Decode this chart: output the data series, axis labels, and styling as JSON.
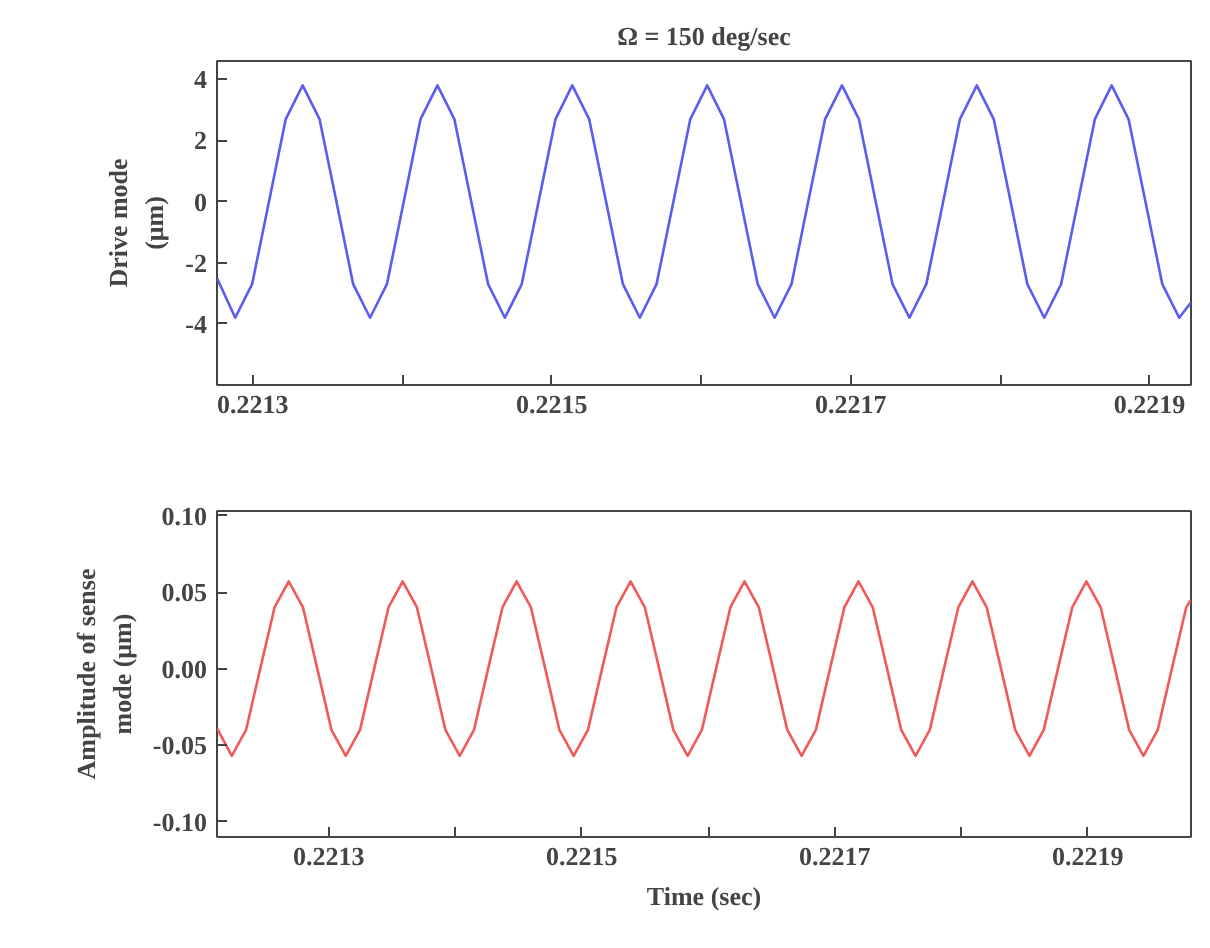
{
  "chart_data": [
    {
      "type": "line",
      "title": "Ω = 150 deg/sec",
      "ylabel": "Drive mode\n(μm)",
      "xlim": [
        0.221276,
        0.2219277
      ],
      "ylim": [
        -6,
        4.6
      ],
      "xticks": [
        0.2213,
        {
          "value": 0.2214,
          "label": null
        },
        0.2215,
        {
          "value": 0.2216,
          "label": null
        },
        0.2217,
        {
          "value": 0.2218,
          "label": null
        },
        0.2219
      ],
      "yticks": [
        4,
        2,
        0,
        {
          "value": -2,
          "label": "-2"
        },
        {
          "value": -4,
          "label": "-4"
        }
      ],
      "grid": false,
      "marker": "none",
      "line_style": "solid",
      "series": [
        {
          "color": "#5c5cf0",
          "x": [
            0.221276,
            0.2212882,
            0.2212995,
            0.2213108,
            0.221322,
            0.2213333,
            0.2213446,
            0.2213559,
            0.2213671,
            0.2213784,
            0.2213897,
            0.221401,
            0.2214122,
            0.2214235,
            0.2214348,
            0.2214461,
            0.2214574,
            0.2214686,
            0.2214799,
            0.2214912,
            0.2215025,
            0.2215137,
            0.221525,
            0.2215363,
            0.2215476,
            0.2215589,
            0.2215701,
            0.2215814,
            0.2215927,
            0.221604,
            0.2216152,
            0.2216265,
            0.2216378,
            0.2216491,
            0.2216604,
            0.2216716,
            0.2216829,
            0.2216942,
            0.2217055,
            0.2217167,
            0.221728,
            0.2217393,
            0.2217506,
            0.2217619,
            0.2217731,
            0.2217844,
            0.2217957,
            0.221807,
            0.2218182,
            0.2218295,
            0.2218408,
            0.2218521,
            0.2218634,
            0.2218746,
            0.2218859,
            0.2218972,
            0.2219085,
            0.2219198,
            0.2219277
          ],
          "values": [
            -2.5,
            -3.8,
            -2.7,
            0,
            2.7,
            3.8,
            2.7,
            0,
            -2.7,
            -3.8,
            -2.7,
            0,
            2.7,
            3.8,
            2.7,
            0,
            -2.7,
            -3.8,
            -2.7,
            0,
            2.7,
            3.8,
            2.7,
            0,
            -2.7,
            -3.8,
            -2.7,
            0,
            2.7,
            3.8,
            2.7,
            0,
            -2.7,
            -3.8,
            -2.7,
            0,
            2.7,
            3.8,
            2.7,
            0,
            -2.7,
            -3.8,
            -2.7,
            0,
            2.7,
            3.8,
            2.7,
            0,
            -2.7,
            -3.8,
            -2.7,
            0,
            2.7,
            3.8,
            2.7,
            0,
            -2.7,
            -3.8,
            -3.3
          ]
        }
      ]
    },
    {
      "type": "line",
      "ylabel": "Amplitude of sense\nmode (μm)",
      "xlabel": "Time (sec)",
      "xlim": [
        0.2212116,
        0.2219817
      ],
      "ylim": [
        -0.11,
        0.103
      ],
      "xticks": [
        0.2213,
        {
          "value": 0.2214,
          "label": null
        },
        0.2215,
        {
          "value": 0.2216,
          "label": null
        },
        0.2217,
        {
          "value": 0.2218,
          "label": null
        },
        0.2219
      ],
      "yticks": [
        {
          "value": 0.1,
          "label": "0.10"
        },
        {
          "value": 0.05,
          "label": "0.05"
        },
        {
          "value": 0,
          "label": "0.00"
        },
        {
          "value": -0.05,
          "label": "-0.05"
        },
        {
          "value": -0.1,
          "label": "-0.10"
        }
      ],
      "grid": false,
      "marker": "none",
      "line_style": "solid",
      "series": [
        {
          "color": "#f05a5a",
          "x": [
            0.2212116,
            0.2212233,
            0.2212346,
            0.2212458,
            0.2212571,
            0.2212683,
            0.2212796,
            0.2212909,
            0.2213021,
            0.2213134,
            0.2213247,
            0.2213359,
            0.2213472,
            0.2213584,
            0.2213697,
            0.221381,
            0.2213922,
            0.2214035,
            0.2214148,
            0.221426,
            0.2214373,
            0.2214485,
            0.2214598,
            0.2214711,
            0.2214823,
            0.2214936,
            0.2215049,
            0.2215161,
            0.2215274,
            0.2215386,
            0.2215499,
            0.2215612,
            0.2215724,
            0.2215837,
            0.221595,
            0.2216062,
            0.2216175,
            0.2216287,
            0.22164,
            0.2216513,
            0.2216625,
            0.2216738,
            0.2216851,
            0.2216963,
            0.2217076,
            0.2217188,
            0.2217301,
            0.2217414,
            0.2217526,
            0.2217639,
            0.2217752,
            0.2217864,
            0.2217977,
            0.2218089,
            0.2218202,
            0.2218315,
            0.2218427,
            0.221854,
            0.2218653,
            0.2218765,
            0.2218878,
            0.221899,
            0.2219103,
            0.2219216,
            0.2219328,
            0.2219441,
            0.2219554,
            0.2219666,
            0.2219779,
            0.2219817
          ],
          "values": [
            -0.039,
            -0.057,
            -0.04,
            0,
            0.04,
            0.057,
            0.04,
            0,
            -0.04,
            -0.057,
            -0.04,
            0,
            0.04,
            0.057,
            0.04,
            0,
            -0.04,
            -0.057,
            -0.04,
            0,
            0.04,
            0.057,
            0.04,
            0,
            -0.04,
            -0.057,
            -0.04,
            0,
            0.04,
            0.057,
            0.04,
            0,
            -0.04,
            -0.057,
            -0.04,
            0,
            0.04,
            0.057,
            0.04,
            0,
            -0.04,
            -0.057,
            -0.04,
            0,
            0.04,
            0.057,
            0.04,
            0,
            -0.04,
            -0.057,
            -0.04,
            0,
            0.04,
            0.057,
            0.04,
            0,
            -0.04,
            -0.057,
            -0.04,
            0,
            0.04,
            0.057,
            0.04,
            0,
            -0.04,
            -0.057,
            -0.04,
            0,
            0.04,
            0.045
          ]
        }
      ]
    }
  ]
}
